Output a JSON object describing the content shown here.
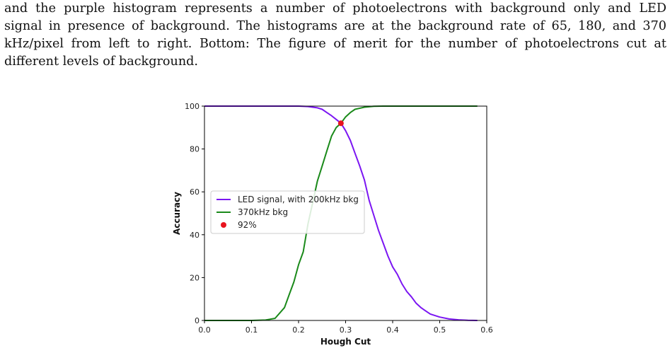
{
  "caption": {
    "lines": [
      "and the purple histogram represents a number of photoelectrons with background only and LED",
      "signal in presence of background. The histograms are at the background rate of 65, 180, and 370",
      "kHz/pixel from left to right. Bottom: The figure of merit for the number of photoelectrons cut at",
      "different levels of background."
    ]
  },
  "chart_data": {
    "type": "line",
    "xlabel": "Hough Cut",
    "ylabel": "Accuracy",
    "xlim": [
      0.0,
      0.6
    ],
    "ylim": [
      0,
      100
    ],
    "xticks": [
      "0.0",
      "0.1",
      "0.2",
      "0.3",
      "0.4",
      "0.5",
      "0.6"
    ],
    "yticks": [
      "0",
      "20",
      "40",
      "60",
      "80",
      "100"
    ],
    "grid": false,
    "legend_position": "center-left",
    "series": [
      {
        "name": "LED signal, with 200kHz bkg",
        "color": "#7b16f2",
        "x": [
          0.0,
          0.05,
          0.1,
          0.15,
          0.2,
          0.22,
          0.24,
          0.25,
          0.26,
          0.27,
          0.28,
          0.29,
          0.3,
          0.31,
          0.32,
          0.33,
          0.34,
          0.35,
          0.36,
          0.37,
          0.38,
          0.39,
          0.4,
          0.41,
          0.42,
          0.43,
          0.44,
          0.45,
          0.46,
          0.47,
          0.48,
          0.5,
          0.52,
          0.54,
          0.56,
          0.58
        ],
        "y": [
          100,
          100,
          100,
          100,
          100,
          99.8,
          99.2,
          98.5,
          97,
          95.5,
          93.8,
          92,
          88.5,
          84,
          78,
          72,
          65.5,
          56,
          49,
          42,
          36,
          30,
          25,
          21.5,
          17,
          13.5,
          11,
          8,
          6,
          4.5,
          3,
          1.6,
          0.7,
          0.3,
          0.1,
          0.0
        ]
      },
      {
        "name": "370kHz bkg",
        "color": "#1a8a1a",
        "x": [
          0.0,
          0.05,
          0.1,
          0.13,
          0.15,
          0.17,
          0.18,
          0.19,
          0.2,
          0.21,
          0.22,
          0.23,
          0.24,
          0.25,
          0.26,
          0.27,
          0.28,
          0.29,
          0.3,
          0.31,
          0.32,
          0.34,
          0.36,
          0.38,
          0.4,
          0.45,
          0.5,
          0.55,
          0.58
        ],
        "y": [
          0,
          0,
          0,
          0.2,
          1,
          6,
          12,
          18,
          26,
          32,
          45,
          55,
          65,
          72,
          79,
          86,
          90,
          92,
          95,
          97,
          98.5,
          99.5,
          99.9,
          100,
          100,
          100,
          100,
          100,
          100
        ]
      }
    ],
    "points": [
      {
        "name": "92%",
        "color": "#e8141e",
        "x": 0.29,
        "y": 92
      }
    ]
  }
}
